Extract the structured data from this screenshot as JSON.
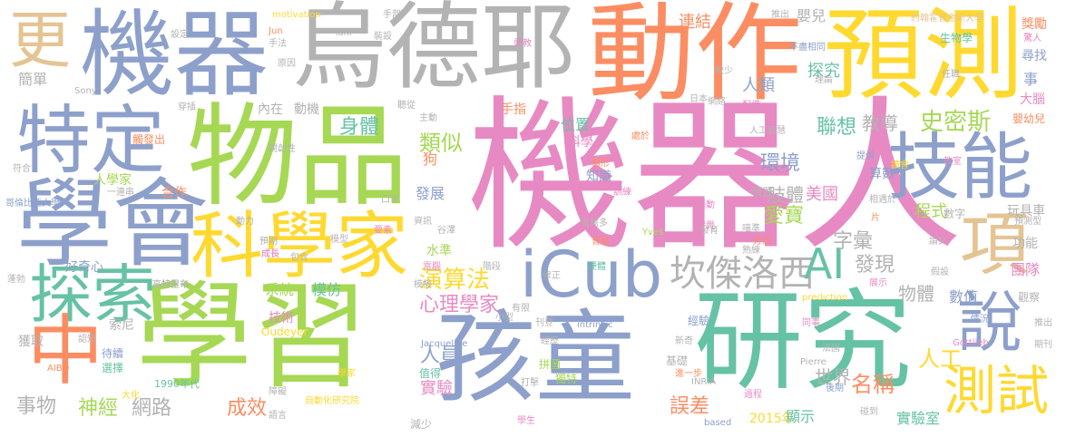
{
  "colors": {
    "pink": "#e78ac3",
    "gray": "#b3b3b3",
    "blue": "#8da0cb",
    "green": "#66c2a5",
    "orange": "#fc8d62",
    "yellow": "#ffd92f",
    "lime": "#a6d854",
    "tan": "#e5c494"
  },
  "words": [
    {
      "text": "機器人",
      "color": "pink"
    },
    {
      "text": "學習",
      "color": "lime"
    },
    {
      "text": "研究",
      "color": "green"
    },
    {
      "text": "孩童",
      "color": "blue"
    },
    {
      "text": "烏德耶",
      "color": "gray"
    },
    {
      "text": "動作",
      "color": "orange"
    },
    {
      "text": "機器",
      "color": "blue"
    },
    {
      "text": "物品",
      "color": "lime"
    },
    {
      "text": "預測",
      "color": "yellow"
    },
    {
      "text": "學會",
      "color": "blue"
    },
    {
      "text": "特定",
      "color": "blue"
    },
    {
      "text": "科學家",
      "color": "yellow"
    },
    {
      "text": "技能",
      "color": "blue"
    },
    {
      "text": "探索",
      "color": "green"
    },
    {
      "text": "iCub",
      "color": "blue"
    },
    {
      "text": "中",
      "color": "orange"
    },
    {
      "text": "更",
      "color": "tan"
    },
    {
      "text": "說",
      "color": "blue"
    },
    {
      "text": "項",
      "color": "tan"
    },
    {
      "text": "測試",
      "color": "yellow"
    },
    {
      "text": "坎傑洛西",
      "color": "gray"
    },
    {
      "text": "AI",
      "color": "green"
    },
    {
      "text": "演算法",
      "color": "yellow"
    },
    {
      "text": "心理學家",
      "color": "pink"
    },
    {
      "text": "身體",
      "color": "green"
    },
    {
      "text": "類似",
      "color": "lime"
    },
    {
      "text": "史密斯",
      "color": "lime"
    },
    {
      "text": "聯想",
      "color": "green"
    },
    {
      "text": "環境",
      "color": "blue"
    },
    {
      "text": "教導",
      "color": "gray"
    },
    {
      "text": "人員",
      "color": "blue"
    },
    {
      "text": "實驗",
      "color": "pink"
    },
    {
      "text": "網路",
      "color": "gray"
    },
    {
      "text": "神經",
      "color": "lime"
    },
    {
      "text": "事物",
      "color": "gray"
    },
    {
      "text": "成效",
      "color": "orange"
    },
    {
      "text": "誤差",
      "color": "orange"
    },
    {
      "text": "名稱",
      "color": "orange"
    },
    {
      "text": "實驗室",
      "color": "green"
    },
    {
      "text": "世界",
      "color": "gray"
    },
    {
      "text": "人工",
      "color": "yellow"
    },
    {
      "text": "字彙",
      "color": "gray"
    },
    {
      "text": "發現",
      "color": "gray"
    },
    {
      "text": "物體",
      "color": "gray"
    },
    {
      "text": "愛寶",
      "color": "lime"
    },
    {
      "text": "美國",
      "color": "pink"
    },
    {
      "text": "肢體",
      "color": "gray"
    },
    {
      "text": "程式",
      "color": "lime"
    },
    {
      "text": "數值",
      "color": "blue"
    },
    {
      "text": "團隊",
      "color": "pink"
    },
    {
      "text": "連結",
      "color": "orange"
    },
    {
      "text": "嬰兒",
      "color": "gray"
    },
    {
      "text": "探究",
      "color": "green"
    },
    {
      "text": "人類",
      "color": "blue"
    },
    {
      "text": "模仿",
      "color": "green"
    },
    {
      "text": "系統",
      "color": "lime"
    },
    {
      "text": "技術",
      "color": "pink"
    },
    {
      "text": "好奇心",
      "color": "blue"
    },
    {
      "text": "簡單",
      "color": "gray"
    },
    {
      "text": "人學家",
      "color": "lime"
    },
    {
      "text": "合作",
      "color": "orange"
    },
    {
      "text": "獲取",
      "color": "gray"
    },
    {
      "text": "索尼",
      "color": "gray"
    },
    {
      "text": "2015年",
      "color": "yellow"
    },
    {
      "text": "1990年代",
      "color": "green"
    },
    {
      "text": "自動化研究院",
      "color": "yellow"
    },
    {
      "text": "位置",
      "color": "green"
    },
    {
      "text": "科學",
      "color": "pink"
    },
    {
      "text": "知識",
      "color": "blue"
    },
    {
      "text": "發展",
      "color": "blue"
    },
    {
      "text": "狗",
      "color": "orange"
    },
    {
      "text": "手指",
      "color": "orange"
    },
    {
      "text": "內在",
      "color": "gray"
    },
    {
      "text": "動機",
      "color": "gray"
    },
    {
      "text": "水準",
      "color": "lime"
    },
    {
      "text": "顯示",
      "color": "green"
    },
    {
      "text": "經驗",
      "color": "blue"
    },
    {
      "text": "數字",
      "color": "gray"
    },
    {
      "text": "功能",
      "color": "gray"
    },
    {
      "text": "觀察",
      "color": "gray"
    },
    {
      "text": "算數",
      "color": "blue"
    },
    {
      "text": "大腦",
      "color": "pink"
    },
    {
      "text": "嬰幼兒",
      "color": "orange"
    },
    {
      "text": "尋找",
      "color": "blue"
    },
    {
      "text": "驚人",
      "color": "pink"
    },
    {
      "text": "獎勵",
      "color": "orange"
    },
    {
      "text": "事",
      "color": "blue"
    },
    {
      "text": "玩具車",
      "color": "gray"
    },
    {
      "text": "預測型",
      "color": "gray"
    },
    {
      "text": "生物學",
      "color": "green"
    },
    {
      "text": "Sony",
      "color": "gray"
    },
    {
      "text": "motivation",
      "color": "yellow"
    },
    {
      "text": "Tani",
      "color": "gray"
    },
    {
      "text": "Jun",
      "color": "orange"
    },
    {
      "text": "Oudeyer",
      "color": "yellow"
    },
    {
      "text": "Jacqueline",
      "color": "blue"
    },
    {
      "text": "Pierre",
      "color": "gray"
    },
    {
      "text": "Gottlieb",
      "color": "pink"
    },
    {
      "text": "Yves",
      "color": "lime"
    },
    {
      "text": "INRIA",
      "color": "gray"
    },
    {
      "text": "AIBO",
      "color": "orange"
    },
    {
      "text": "prediction",
      "color": "yellow"
    },
    {
      "text": "intrinsic",
      "color": "blue"
    },
    {
      "text": "based",
      "color": "blue"
    },
    {
      "text": "學家",
      "color": "yellow"
    },
    {
      "text": "約翰霍普金斯大學",
      "color": "tan"
    },
    {
      "text": "哥倫比亞大學",
      "color": "blue"
    },
    {
      "text": "高特里布",
      "color": "gray"
    },
    {
      "text": "不盡相同",
      "color": "blue"
    },
    {
      "text": "人工智慧",
      "color": "gray"
    },
    {
      "text": "預置",
      "color": "gray"
    },
    {
      "text": "情況",
      "color": "blue"
    },
    {
      "text": "同事",
      "color": "pink"
    },
    {
      "text": "後期",
      "color": "blue"
    },
    {
      "text": "過程",
      "color": "pink"
    },
    {
      "text": "學生",
      "color": "pink"
    },
    {
      "text": "減少",
      "color": "gray"
    },
    {
      "text": "獨特",
      "color": "lime"
    },
    {
      "text": "進一步",
      "color": "orange"
    },
    {
      "text": "值得",
      "color": "green"
    },
    {
      "text": "拼圖",
      "color": "lime"
    },
    {
      "text": "經歷",
      "color": "gray"
    },
    {
      "text": "障礙",
      "color": "gray"
    },
    {
      "text": "語言",
      "color": "gray"
    },
    {
      "text": "選擇",
      "color": "green"
    },
    {
      "text": "待續",
      "color": "blue"
    },
    {
      "text": "認知",
      "color": "gray"
    },
    {
      "text": "一連串",
      "color": "gray"
    },
    {
      "text": "有限",
      "color": "gray"
    },
    {
      "text": "基礎",
      "color": "gray"
    },
    {
      "text": "新奇",
      "color": "gray"
    },
    {
      "text": "法國",
      "color": "gray"
    },
    {
      "text": "假設",
      "color": "gray"
    },
    {
      "text": "論文",
      "color": "gray"
    },
    {
      "text": "展示",
      "color": "pink"
    },
    {
      "text": "方法",
      "color": "orange"
    },
    {
      "text": "熟練",
      "color": "gray"
    },
    {
      "text": "發覺",
      "color": "pink"
    },
    {
      "text": "有需多",
      "color": "gray"
    },
    {
      "text": "普遍",
      "color": "orange"
    },
    {
      "text": "硬體",
      "color": "green"
    },
    {
      "text": "模擬",
      "color": "gray"
    },
    {
      "text": "高特里布",
      "color": "gray"
    },
    {
      "text": "開創性",
      "color": "gray"
    },
    {
      "text": "日本",
      "color": "gray"
    },
    {
      "text": "網絡",
      "color": "gray"
    },
    {
      "text": "較少",
      "color": "gray"
    },
    {
      "text": "配備",
      "color": "pink"
    },
    {
      "text": "提供",
      "color": "blue"
    },
    {
      "text": "教室",
      "color": "pink"
    },
    {
      "text": "相遇於",
      "color": "gray"
    },
    {
      "text": "處於",
      "color": "orange"
    },
    {
      "text": "訓練",
      "color": "pink"
    },
    {
      "text": "情形",
      "color": "orange"
    },
    {
      "text": "資訊",
      "color": "gray"
    },
    {
      "text": "谷澤",
      "color": "gray"
    },
    {
      "text": "要素",
      "color": "pink"
    },
    {
      "text": "模型",
      "color": "gray"
    },
    {
      "text": "口令",
      "color": "gray"
    },
    {
      "text": "動力",
      "color": "gray"
    },
    {
      "text": "包含",
      "color": "gray"
    },
    {
      "text": "成長",
      "color": "pink"
    },
    {
      "text": "預期",
      "color": "gray"
    },
    {
      "text": "蓬勃",
      "color": "gray"
    },
    {
      "text": "大化",
      "color": "yellow"
    },
    {
      "text": "主動",
      "color": "gray"
    },
    {
      "text": "聽從",
      "color": "gray"
    },
    {
      "text": "手部",
      "color": "gray"
    },
    {
      "text": "手法",
      "color": "gray"
    },
    {
      "text": "裝設",
      "color": "gray"
    },
    {
      "text": "設定",
      "color": "gray"
    },
    {
      "text": "原因",
      "color": "gray"
    },
    {
      "text": "穿插",
      "color": "gray"
    },
    {
      "text": "符合",
      "color": "gray"
    },
    {
      "text": "驅動",
      "color": "pink"
    },
    {
      "text": "喵準",
      "color": "gray"
    },
    {
      "text": "發育",
      "color": "gray"
    },
    {
      "text": "修正",
      "color": "gray"
    },
    {
      "text": "電腦",
      "color": "pink"
    },
    {
      "text": "階段",
      "color": "gray"
    },
    {
      "text": "任職",
      "color": "gray"
    },
    {
      "text": "理論",
      "color": "gray"
    },
    {
      "text": "碰到",
      "color": "gray"
    },
    {
      "text": "推出",
      "color": "gray"
    },
    {
      "text": "期刊",
      "color": "gray"
    },
    {
      "text": "推出",
      "color": "gray"
    },
    {
      "text": "觸發出",
      "color": "orange"
    },
    {
      "text": "小型",
      "color": "gray"
    },
    {
      "text": "刊登",
      "color": "gray"
    },
    {
      "text": "片",
      "color": "orange"
    },
    {
      "text": "讀會",
      "color": "yellow"
    },
    {
      "text": "打擊",
      "color": "gray"
    },
    {
      "text": "要教",
      "color": "pink"
    },
    {
      "text": "成長",
      "color": "pink"
    }
  ]
}
